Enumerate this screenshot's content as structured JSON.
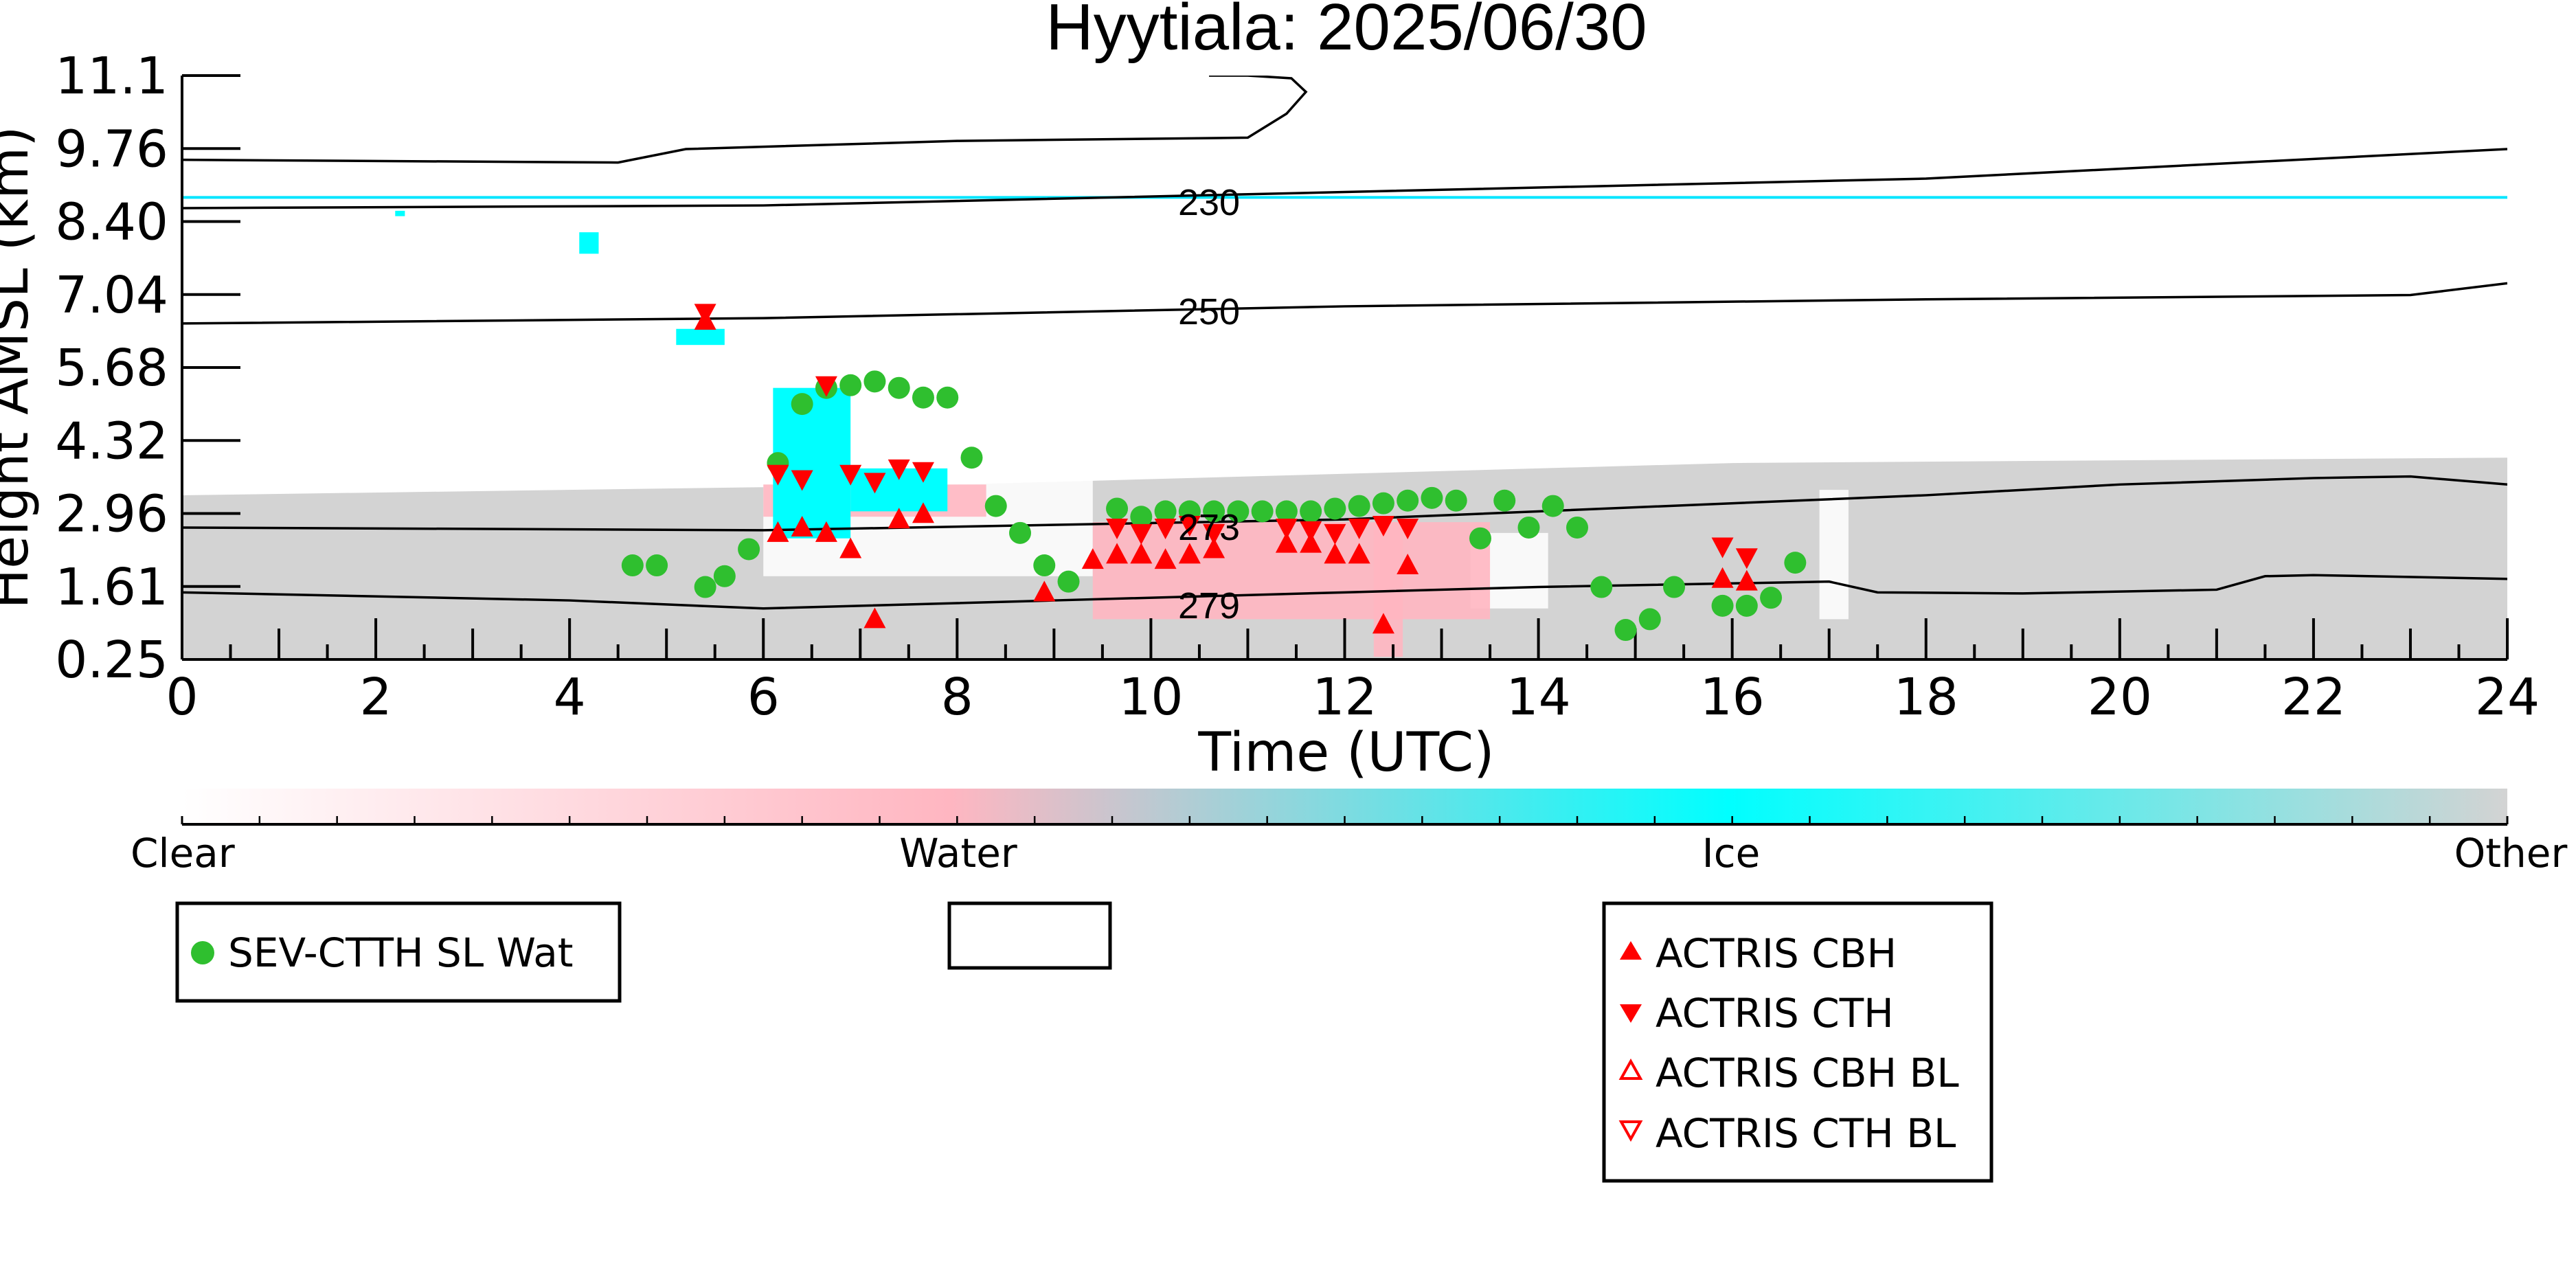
{
  "chart_data": {
    "type": "scatter",
    "title": "Hyytiala: 2025/06/30",
    "xlabel": "Time (UTC)",
    "ylabel": "Height AMSL (km)",
    "xlim": [
      0,
      24
    ],
    "ylim": [
      0.25,
      11.1
    ],
    "xticks": [
      "0",
      "2",
      "4",
      "6",
      "8",
      "10",
      "12",
      "14",
      "16",
      "18",
      "20",
      "22",
      "24"
    ],
    "yticks": [
      "0.25",
      "1.61",
      "2.96",
      "4.32",
      "5.68",
      "7.04",
      "8.40",
      "9.76",
      "11.1"
    ],
    "colorbar": {
      "labels": [
        "Clear",
        "Water",
        "Ice",
        "Other"
      ],
      "colors": [
        "#ffffff",
        "#ffb6c1",
        "#00ffff",
        "#d3d3d3"
      ]
    },
    "contours": [
      {
        "label": "230",
        "points": [
          [
            0,
            8.65
          ],
          [
            6,
            8.7
          ],
          [
            12,
            8.95
          ],
          [
            18,
            9.2
          ],
          [
            24,
            9.75
          ]
        ]
      },
      {
        "label": "250",
        "points": [
          [
            0,
            6.5
          ],
          [
            6,
            6.6
          ],
          [
            12,
            6.82
          ],
          [
            18,
            6.95
          ],
          [
            23,
            7.03
          ],
          [
            24,
            7.25
          ]
        ]
      },
      {
        "label": "273",
        "points": [
          [
            0,
            2.7
          ],
          [
            6,
            2.65
          ],
          [
            12,
            2.85
          ],
          [
            18,
            3.3
          ],
          [
            20,
            3.5
          ],
          [
            22,
            3.62
          ],
          [
            23,
            3.65
          ],
          [
            24,
            3.5
          ]
        ]
      },
      {
        "label": "279",
        "points": [
          [
            0,
            1.5
          ],
          [
            4,
            1.35
          ],
          [
            6,
            1.2
          ],
          [
            9,
            1.35
          ],
          [
            12,
            1.5
          ],
          [
            14,
            1.6
          ],
          [
            17,
            1.7
          ],
          [
            17.5,
            1.5
          ],
          [
            19,
            1.48
          ],
          [
            21,
            1.55
          ],
          [
            21.5,
            1.8
          ],
          [
            22,
            1.82
          ],
          [
            24,
            1.75
          ]
        ]
      },
      {
        "label": "",
        "points": [
          [
            0,
            9.55
          ],
          [
            4.5,
            9.5
          ],
          [
            5.2,
            9.75
          ],
          [
            8,
            9.9
          ],
          [
            11,
            9.96
          ],
          [
            11.4,
            10.4
          ],
          [
            11.6,
            10.8
          ],
          [
            11.45,
            11.05
          ],
          [
            11,
            11.1
          ],
          [
            10.6,
            11.1
          ]
        ]
      }
    ],
    "reference_line": {
      "color": "#00e5ff",
      "y": 8.85
    },
    "cloud_regions": {
      "other_background": {
        "x": [
          0,
          24
        ],
        "top": [
          3.3,
          3.5,
          3.9,
          4.0
        ],
        "color": "#d3d3d3"
      },
      "ice": [
        {
          "x": [
            6.1,
            6.9
          ],
          "y": [
            2.5,
            5.3
          ]
        },
        {
          "x": [
            6.9,
            7.9
          ],
          "y": [
            3.0,
            3.8
          ]
        },
        {
          "x": [
            5.1,
            5.6
          ],
          "y": [
            6.1,
            6.4
          ]
        },
        {
          "x": [
            4.1,
            4.3
          ],
          "y": [
            7.8,
            8.2
          ]
        },
        {
          "x": [
            2.2,
            2.3
          ],
          "y": [
            8.5,
            8.6
          ]
        }
      ],
      "water": [
        {
          "x": [
            9.4,
            13.5
          ],
          "y": [
            1.0,
            2.8
          ]
        },
        {
          "x": [
            6.0,
            8.3
          ],
          "y": [
            2.9,
            3.5
          ]
        },
        {
          "x": [
            12.3,
            12.6
          ],
          "y": [
            0.3,
            2.8
          ]
        }
      ]
    },
    "series": [
      {
        "name": "SEV-CTTH SL Wat",
        "marker": "circle",
        "color": "#2fbf2f",
        "x": [
          4.65,
          4.9,
          5.4,
          5.6,
          5.85,
          6.15,
          6.4,
          6.65,
          6.9,
          7.15,
          7.4,
          7.65,
          7.9,
          8.15,
          8.4,
          8.65,
          8.9,
          9.15,
          9.65,
          9.9,
          10.15,
          10.4,
          10.65,
          10.9,
          11.15,
          11.4,
          11.65,
          11.9,
          12.15,
          12.4,
          12.65,
          12.9,
          13.15,
          13.4,
          13.65,
          13.9,
          14.15,
          14.4,
          14.65,
          14.9,
          15.15,
          15.4,
          15.9,
          16.15,
          16.4,
          16.65
        ],
        "y": [
          2.0,
          2.0,
          1.6,
          1.8,
          2.3,
          3.9,
          5.0,
          5.3,
          5.35,
          5.42,
          5.3,
          5.12,
          5.12,
          4.0,
          3.1,
          2.6,
          2.0,
          1.7,
          3.05,
          2.9,
          3.0,
          3.0,
          3.0,
          3.0,
          3.0,
          3.0,
          3.0,
          3.05,
          3.1,
          3.15,
          3.2,
          3.25,
          3.2,
          2.5,
          3.2,
          2.7,
          3.1,
          2.7,
          1.6,
          0.8,
          1.0,
          1.6,
          1.25,
          1.25,
          1.4,
          2.05
        ]
      },
      {
        "name": "ACTRIS CBH",
        "marker": "triangle-up",
        "color": "#ff0000",
        "x": [
          5.4,
          6.15,
          6.4,
          6.65,
          6.9,
          7.15,
          7.4,
          7.65,
          8.9,
          9.4,
          9.65,
          9.9,
          10.15,
          10.4,
          10.65,
          11.4,
          11.65,
          11.9,
          12.15,
          12.4,
          12.65,
          15.9,
          16.15
        ],
        "y": [
          6.55,
          2.6,
          2.7,
          2.6,
          2.3,
          1.0,
          2.85,
          2.95,
          1.5,
          2.1,
          2.2,
          2.2,
          2.1,
          2.2,
          2.3,
          2.4,
          2.4,
          2.2,
          2.2,
          0.9,
          2.0,
          1.75,
          1.7
        ]
      },
      {
        "name": "ACTRIS CTH",
        "marker": "triangle-down",
        "color": "#ff0000",
        "x": [
          5.4,
          6.15,
          6.4,
          6.65,
          6.9,
          7.15,
          7.4,
          7.65,
          9.65,
          9.9,
          10.15,
          10.4,
          10.65,
          11.4,
          11.65,
          11.9,
          12.15,
          12.4,
          12.65,
          15.9,
          16.15
        ],
        "y": [
          6.7,
          3.7,
          3.6,
          5.35,
          3.7,
          3.55,
          3.8,
          3.75,
          2.7,
          2.6,
          2.7,
          2.75,
          2.6,
          2.7,
          2.65,
          2.6,
          2.7,
          2.75,
          2.7,
          2.35,
          2.15
        ]
      },
      {
        "name": "ACTRIS CBH BL",
        "marker": "triangle-up-open",
        "color": "#ff0000",
        "x": [],
        "y": []
      },
      {
        "name": "ACTRIS CTH BL",
        "marker": "triangle-down-open",
        "color": "#ff0000",
        "x": [],
        "y": []
      }
    ],
    "legends": [
      {
        "entries": [
          "SEV-CTTH SL Wat"
        ]
      },
      {
        "entries": []
      },
      {
        "entries": [
          "ACTRIS CBH",
          "ACTRIS CTH",
          "ACTRIS CBH BL",
          "ACTRIS CTH BL"
        ]
      }
    ]
  }
}
